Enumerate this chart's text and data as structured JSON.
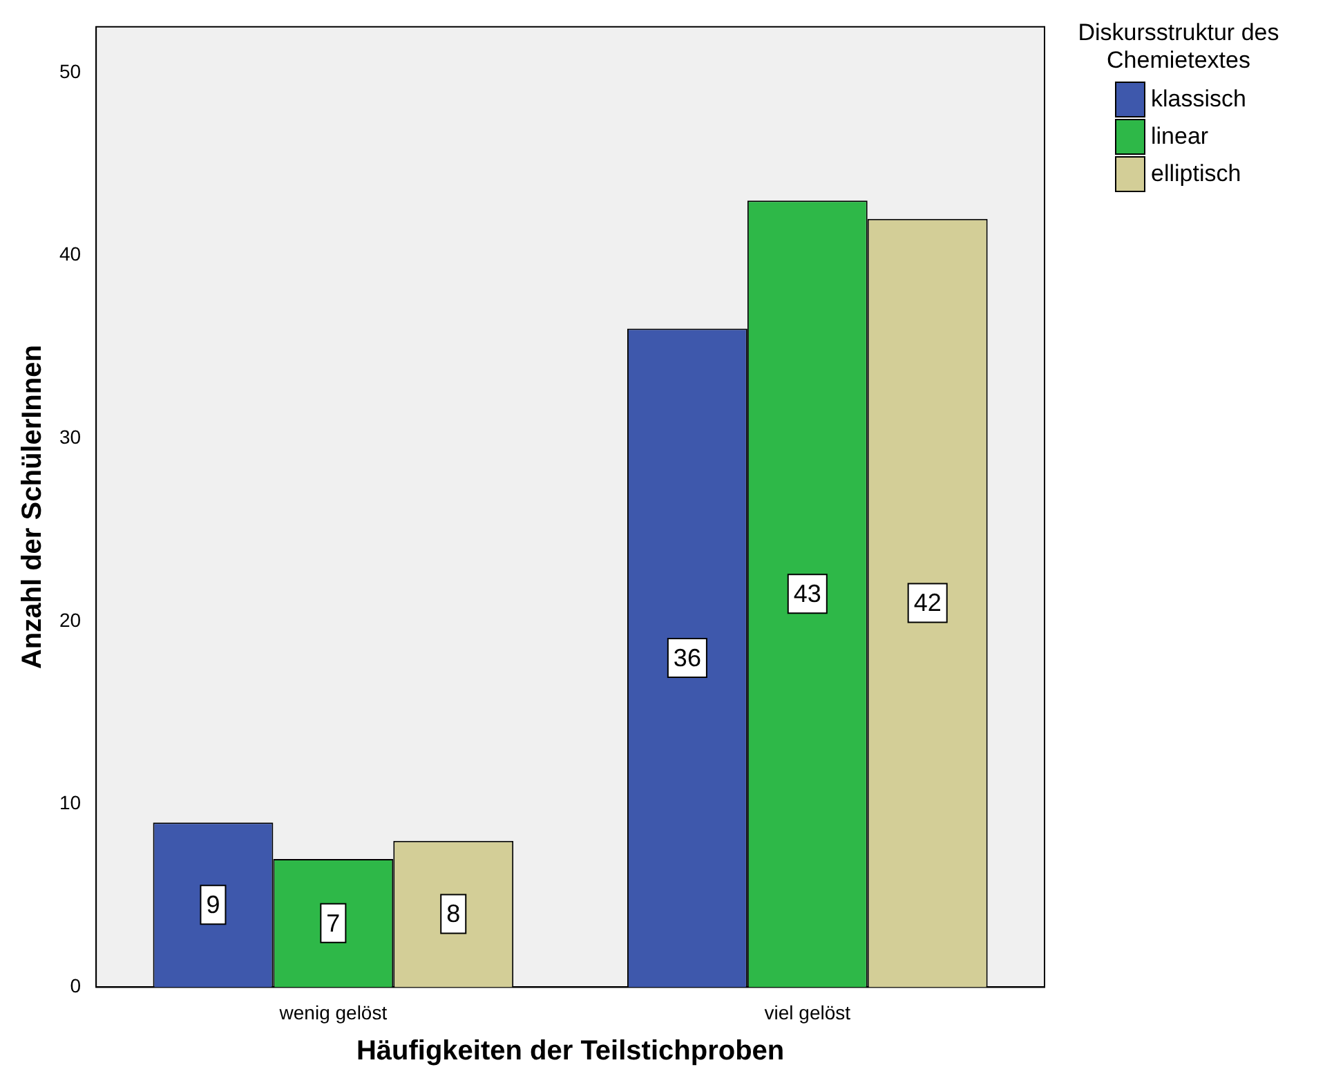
{
  "chart_data": {
    "type": "bar",
    "xlabel": "Häufigkeiten der Teilstichproben",
    "ylabel": "Anzahl der SchülerInnen",
    "legend_title": "Diskursstruktur des Chemietextes",
    "categories": [
      "wenig gelöst",
      "viel gelöst"
    ],
    "series": [
      {
        "name": "klassisch",
        "color": "#3e58ac",
        "values": [
          9,
          36
        ]
      },
      {
        "name": "linear",
        "color": "#2eb848",
        "values": [
          7,
          43
        ]
      },
      {
        "name": "elliptisch",
        "color": "#d3ce97",
        "values": [
          8,
          42
        ]
      }
    ],
    "ylim": [
      0,
      52.5
    ],
    "yticks": [
      0,
      10,
      20,
      30,
      40,
      50
    ],
    "grid": false,
    "legend": "top right",
    "data_labels": true
  }
}
